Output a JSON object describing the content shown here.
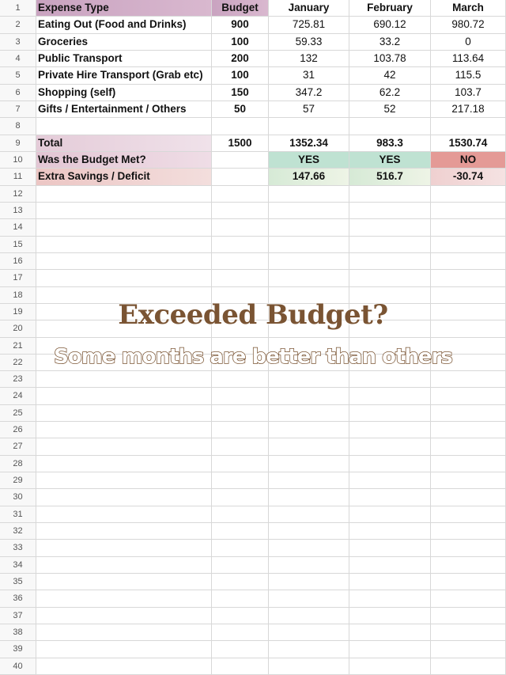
{
  "colors": {
    "header": "#c9a3c0",
    "total_label": "#e4cbd8",
    "met_label": "#e3c6d4",
    "savings_label": "#ecc6c4",
    "yes": "#bfe2d2",
    "no": "#e49a96",
    "savings_pos": "#d6ead6",
    "savings_neg": "#efd0d0",
    "overlay_text": "#7a5433"
  },
  "sheet": {
    "rows": [
      [
        "Expense Type",
        "Budget",
        "January",
        "February",
        "March"
      ],
      [
        "Eating Out (Food and Drinks)",
        "900",
        "725.81",
        "690.12",
        "980.72"
      ],
      [
        "Groceries",
        "100",
        "59.33",
        "33.2",
        "0"
      ],
      [
        "Public Transport",
        "200",
        "132",
        "103.78",
        "113.64"
      ],
      [
        "Private Hire Transport (Grab etc)",
        "100",
        "31",
        "42",
        "115.5"
      ],
      [
        "Shopping (self)",
        "150",
        "347.2",
        "62.2",
        "103.7"
      ],
      [
        "Gifts / Entertainment / Others",
        "50",
        "57",
        "52",
        "217.18"
      ],
      [
        "",
        "",
        "",
        "",
        ""
      ],
      [
        "Total",
        "1500",
        "1352.34",
        "983.3",
        "1530.74"
      ],
      [
        "Was the Budget Met?",
        "",
        "YES",
        "YES",
        "NO"
      ],
      [
        "Extra Savings / Deficit",
        "",
        "147.66",
        "516.7",
        "-30.74"
      ]
    ],
    "row_count": 40
  },
  "overlay": {
    "title": "Exceeded Budget?",
    "subtitle": "Some months are better than others"
  }
}
